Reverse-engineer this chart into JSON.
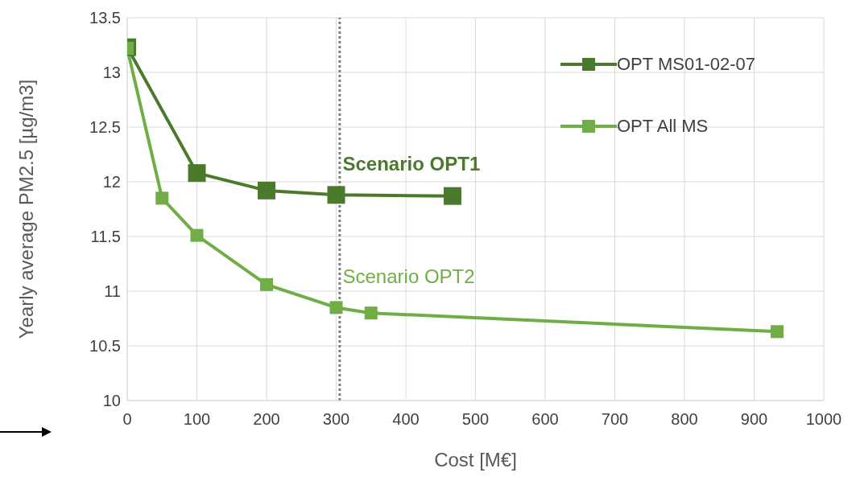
{
  "chart_data": {
    "type": "line",
    "xlabel": "Cost [M€]",
    "ylabel": "Yearly average PM2.5 [µg/m3]",
    "xlim": [
      0,
      1000
    ],
    "xticks": [
      0,
      100,
      200,
      300,
      400,
      500,
      600,
      700,
      800,
      900,
      1000
    ],
    "ylim": [
      10,
      13.5
    ],
    "yticks": [
      10,
      10.5,
      11,
      11.5,
      12,
      12.5,
      13,
      13.5
    ],
    "grid": true,
    "legend": "top right",
    "marker": "square",
    "line_style": "solid",
    "series": [
      {
        "name": "OPT MS01-02-07",
        "color": "#4a7a2c",
        "x": [
          0,
          100,
          200,
          300,
          467
        ],
        "values": [
          13.23,
          12.08,
          11.92,
          11.88,
          11.87
        ]
      },
      {
        "name": "OPT All MS",
        "color": "#70ad47",
        "x": [
          0,
          50,
          100,
          200,
          300,
          350,
          933
        ],
        "values": [
          13.22,
          11.85,
          11.51,
          11.06,
          10.85,
          10.8,
          10.63
        ]
      }
    ],
    "ref_lines": [
      {
        "axis": "x",
        "value": 305,
        "color": "#808080",
        "line_style": "dotted"
      }
    ],
    "annotations": [
      {
        "text": "Scenario OPT1",
        "x": 300,
        "y": 11.88
      },
      {
        "text": "Scenario OPT2",
        "x": 300,
        "y": 10.85
      }
    ]
  }
}
